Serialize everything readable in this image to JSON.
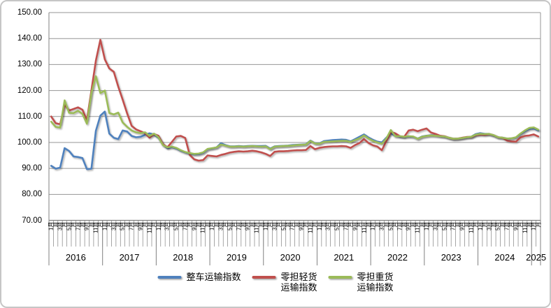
{
  "chart": {
    "title": "",
    "y_axis": {
      "tick_labels": [
        "150.00",
        "140.00",
        "130.00",
        "120.00",
        "110.00",
        "100.00",
        "90.00",
        "80.00",
        "70.00"
      ]
    },
    "x_axis": {
      "years": [
        {
          "label": "2016",
          "months": 12
        },
        {
          "label": "2017",
          "months": 12
        },
        {
          "label": "2018",
          "months": 12
        },
        {
          "label": "2019",
          "months": 12
        },
        {
          "label": "2020",
          "months": 12
        },
        {
          "label": "2021",
          "months": 12
        },
        {
          "label": "2022",
          "months": 12
        },
        {
          "label": "2023",
          "months": 12
        },
        {
          "label": "2024",
          "months": 12
        },
        {
          "label": "2025",
          "months": 2
        }
      ],
      "month_suffix": "月",
      "numbered_months": [
        1,
        3,
        5,
        7,
        9,
        11
      ]
    },
    "legend": {
      "items": [
        {
          "lines": [
            "整车运输指数",
            ""
          ],
          "color": "#4F81BD"
        },
        {
          "lines": [
            "零担轻货",
            "运输指数"
          ],
          "color": "#C0504D"
        },
        {
          "lines": [
            "零担重货",
            "运输指数"
          ],
          "color": "#9BBB59"
        }
      ]
    },
    "colors": {
      "series_blue": "#4F81BD",
      "series_red": "#C0504D",
      "series_green": "#9BBB59",
      "gridline": "#969696",
      "axis": "#808080",
      "outer_border": "#c6c6c6"
    }
  },
  "chart_data": {
    "type": "line",
    "x_interval": "month",
    "x_start": "2016-01",
    "x_end": "2025-02",
    "ylim": [
      70,
      150
    ],
    "y_step": 10,
    "grid": "horizontal",
    "legend_position": "bottom",
    "series": [
      {
        "name": "整车运输指数",
        "color": "#4F81BD",
        "values": [
          91.0,
          89.9,
          90.3,
          97.8,
          96.7,
          94.6,
          94.4,
          94.0,
          89.7,
          89.9,
          104.5,
          110.3,
          111.9,
          103.4,
          101.8,
          101.3,
          104.6,
          104.2,
          102.5,
          102.0,
          102.2,
          102.9,
          103.5,
          103.1,
          101.8,
          99.2,
          97.8,
          98.2,
          97.7,
          96.8,
          96.2,
          95.7,
          95.4,
          95.5,
          96.0,
          97.4,
          97.7,
          98.1,
          99.7,
          99.0,
          98.5,
          98.5,
          98.6,
          98.5,
          98.6,
          98.7,
          98.6,
          98.6,
          98.7,
          97.6,
          98.5,
          98.6,
          98.7,
          98.8,
          99.0,
          99.1,
          99.2,
          99.3,
          100.7,
          99.7,
          99.6,
          100.5,
          100.7,
          100.9,
          101.0,
          101.1,
          101.0,
          100.4,
          101.3,
          102.2,
          103.1,
          101.9,
          101.0,
          100.3,
          100.0,
          101.8,
          103.6,
          102.5,
          102.3,
          102.1,
          102.3,
          102.2,
          101.5,
          102.3,
          102.6,
          102.8,
          102.7,
          102.5,
          102.3,
          101.8,
          101.4,
          101.5,
          101.7,
          102.0,
          102.2,
          103.2,
          103.6,
          103.3,
          103.3,
          102.7,
          102.0,
          101.8,
          101.5,
          101.6,
          101.9,
          103.2,
          104.3,
          105.2,
          105.4,
          104.6
        ]
      },
      {
        "name": "零担轻货运输指数",
        "color": "#C0504D",
        "values": [
          110.0,
          107.4,
          107.0,
          114.5,
          112.3,
          112.9,
          113.5,
          112.6,
          108.6,
          120.0,
          131.5,
          139.5,
          132.0,
          128.5,
          127.2,
          121.5,
          116.5,
          111.2,
          106.4,
          105.0,
          104.3,
          103.6,
          101.8,
          103.2,
          102.6,
          99.3,
          98.1,
          100.2,
          102.3,
          102.5,
          101.7,
          95.2,
          93.5,
          93.0,
          93.2,
          95.0,
          94.8,
          94.6,
          95.2,
          95.6,
          96.1,
          96.4,
          96.6,
          96.5,
          96.6,
          96.8,
          96.6,
          96.2,
          95.6,
          94.8,
          96.4,
          96.6,
          96.6,
          96.7,
          96.9,
          97.0,
          97.0,
          97.1,
          98.6,
          97.4,
          97.9,
          98.2,
          98.4,
          98.5,
          98.5,
          98.6,
          98.5,
          97.9,
          99.0,
          99.8,
          101.3,
          99.8,
          98.9,
          98.4,
          97.0,
          100.5,
          104.0,
          103.5,
          102.4,
          102.2,
          104.6,
          104.9,
          104.3,
          104.9,
          105.4,
          103.8,
          103.3,
          102.6,
          102.4,
          101.8,
          101.4,
          101.5,
          101.8,
          102.1,
          102.1,
          102.8,
          103.0,
          102.9,
          103.2,
          102.8,
          102.0,
          101.8,
          100.7,
          100.4,
          100.3,
          101.9,
          102.5,
          102.7,
          103.1,
          102.3
        ]
      },
      {
        "name": "零担重货运输指数",
        "color": "#9BBB59",
        "values": [
          108.0,
          106.0,
          105.7,
          116.2,
          111.4,
          111.3,
          112.2,
          111.0,
          107.2,
          119.0,
          125.5,
          119.0,
          120.0,
          111.3,
          110.8,
          111.5,
          107.7,
          106.0,
          104.6,
          103.9,
          103.6,
          103.9,
          102.5,
          103.4,
          102.0,
          99.0,
          98.1,
          98.4,
          97.9,
          97.0,
          96.3,
          95.9,
          95.6,
          95.7,
          96.2,
          97.5,
          97.8,
          98.1,
          99.2,
          98.8,
          98.4,
          98.4,
          98.5,
          98.4,
          98.5,
          98.6,
          98.5,
          98.4,
          98.5,
          97.4,
          98.4,
          98.5,
          98.6,
          98.7,
          98.8,
          99.0,
          99.1,
          99.2,
          100.6,
          99.6,
          99.5,
          100.2,
          100.3,
          100.4,
          100.5,
          100.6,
          100.6,
          100.2,
          100.9,
          101.6,
          102.7,
          101.5,
          100.6,
          100.0,
          99.5,
          101.5,
          104.8,
          102.4,
          102.4,
          102.2,
          102.4,
          102.3,
          101.4,
          102.2,
          102.5,
          102.7,
          102.6,
          102.4,
          102.3,
          101.8,
          101.4,
          101.5,
          101.7,
          102.0,
          102.2,
          103.0,
          103.3,
          103.2,
          103.3,
          102.8,
          102.0,
          101.8,
          101.5,
          101.6,
          102.0,
          103.4,
          104.6,
          105.6,
          105.8,
          104.9
        ]
      }
    ]
  }
}
